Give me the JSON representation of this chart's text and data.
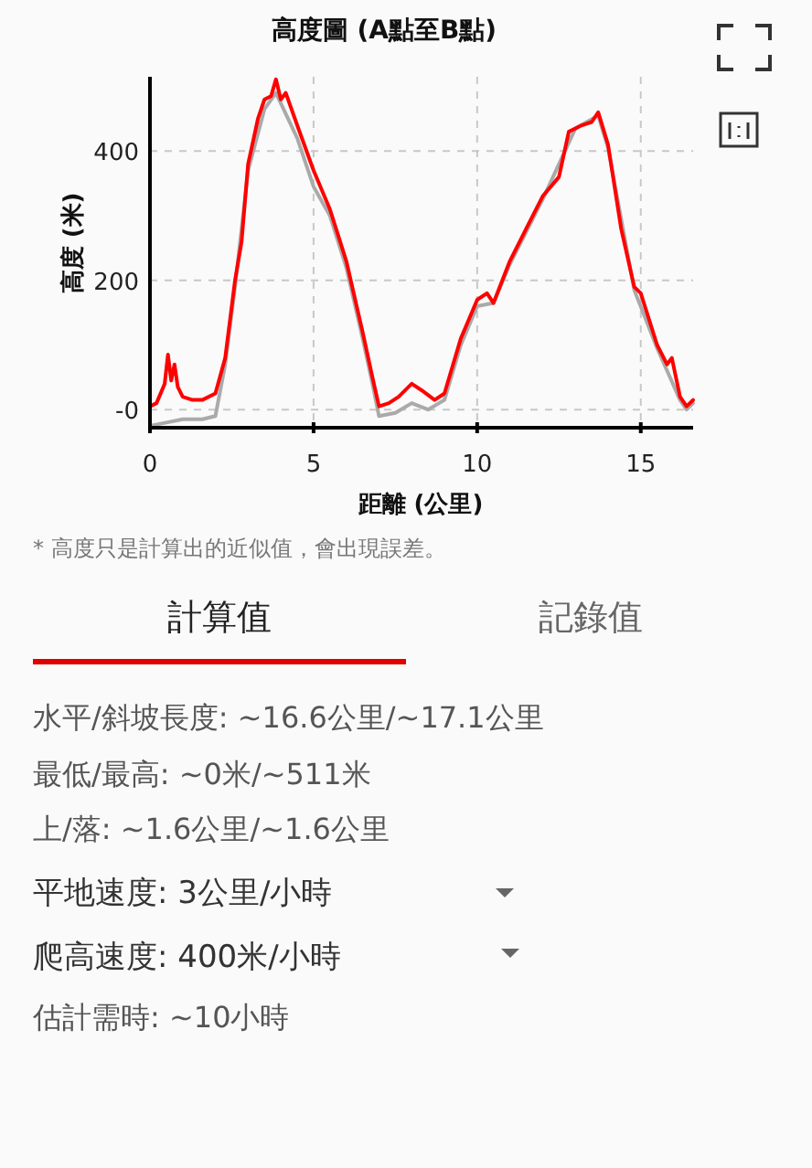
{
  "chart_data": {
    "type": "line",
    "title": "高度圖 (A點至B點)",
    "xlabel": "距離 (公里)",
    "ylabel": "高度 (米)",
    "xlim": [
      0,
      16.6
    ],
    "ylim": [
      -28,
      515
    ],
    "xticks": [
      0,
      5,
      10,
      15
    ],
    "yticks": [
      {
        "value": 0,
        "label": "-0"
      },
      200,
      400
    ],
    "grid": true,
    "series": [
      {
        "color": "#aaaaaa",
        "x": [
          0,
          0.5,
          1,
          1.6,
          2,
          2.3,
          2.6,
          3.0,
          3.5,
          3.85,
          4.5,
          5.0,
          5.5,
          6,
          6.5,
          6.8,
          7.0,
          7.5,
          8,
          8.5,
          9,
          9.5,
          10,
          10.5,
          11,
          12,
          13,
          13.7,
          14.0,
          14.8,
          15.5,
          16.2,
          16.4,
          16.6
        ],
        "values": [
          -25,
          -20,
          -15,
          -15,
          -10,
          70,
          190,
          370,
          465,
          490,
          420,
          345,
          300,
          220,
          110,
          40,
          -10,
          -5,
          10,
          0,
          15,
          100,
          160,
          165,
          225,
          325,
          435,
          455,
          405,
          185,
          95,
          15,
          0,
          10
        ]
      },
      {
        "color": "#ff0000",
        "x": [
          0,
          0.2,
          0.45,
          0.55,
          0.65,
          0.75,
          0.85,
          1.0,
          1.3,
          1.6,
          2.0,
          2.3,
          2.6,
          2.8,
          3.0,
          3.3,
          3.5,
          3.7,
          3.85,
          4.0,
          4.15,
          4.5,
          5.0,
          5.5,
          6.0,
          6.5,
          6.8,
          7.0,
          7.3,
          7.6,
          8.0,
          8.3,
          8.7,
          9.0,
          9.5,
          10.0,
          10.3,
          10.5,
          11.0,
          11.5,
          12.0,
          12.5,
          12.8,
          13.2,
          13.5,
          13.7,
          14.0,
          14.4,
          14.8,
          15.0,
          15.5,
          15.8,
          15.95,
          16.2,
          16.4,
          16.6
        ],
        "values": [
          5,
          10,
          40,
          85,
          45,
          70,
          35,
          20,
          15,
          15,
          25,
          80,
          200,
          260,
          380,
          450,
          480,
          485,
          511,
          480,
          490,
          440,
          370,
          310,
          230,
          120,
          50,
          5,
          10,
          20,
          40,
          30,
          15,
          25,
          110,
          170,
          180,
          165,
          230,
          280,
          330,
          360,
          430,
          440,
          445,
          460,
          410,
          280,
          190,
          180,
          100,
          70,
          80,
          20,
          5,
          15
        ]
      }
    ],
    "annotations": [
      "* 高度只是計算出的近似值，會出現誤差。",
      "計算值",
      "記錄值",
      "水平/斜坡長度: ~16.6公里/~17.1公里",
      "最低/最高: ~0米/~511米",
      "上/落: ~1.6公里/~1.6公里",
      "平地速度:  3公里/小時",
      "爬高速度:  400米/小時",
      "估計需時: ~10小時"
    ]
  }
}
